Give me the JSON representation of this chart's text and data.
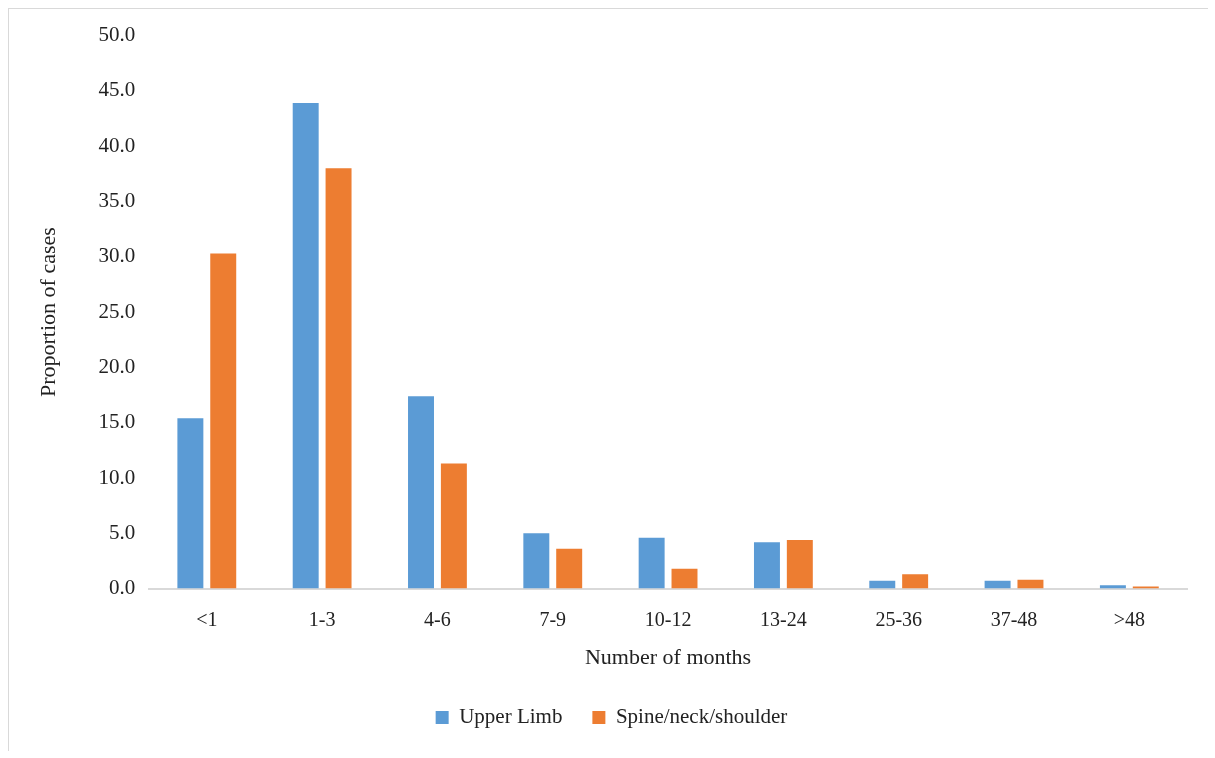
{
  "chart_data": {
    "type": "bar",
    "xlabel": "Number of months",
    "ylabel": "Proportion of cases",
    "categories": [
      "<1",
      "1-3",
      "4-6",
      "7-9",
      "10-12",
      "13-24",
      "25-36",
      "37-48",
      ">48"
    ],
    "series": [
      {
        "name": "Upper Limb",
        "color": "#5b9bd5",
        "values": [
          15.4,
          43.9,
          17.4,
          5.0,
          4.6,
          4.2,
          0.7,
          0.7,
          0.3
        ]
      },
      {
        "name": "Spine/neck/shoulder",
        "color": "#ed7d31",
        "values": [
          30.3,
          38.0,
          11.3,
          3.6,
          1.8,
          4.4,
          1.3,
          0.8,
          0.2
        ]
      }
    ],
    "ylim": [
      0,
      50
    ],
    "yticks": [
      {
        "value": 0,
        "label": "0.0"
      },
      {
        "value": 5,
        "label": "5.0"
      },
      {
        "value": 10,
        "label": "10.0"
      },
      {
        "value": 15,
        "label": "15.0"
      },
      {
        "value": 20,
        "label": "20.0"
      },
      {
        "value": 25,
        "label": "25.0"
      },
      {
        "value": 30,
        "label": "30.0"
      },
      {
        "value": 35,
        "label": "35.0"
      },
      {
        "value": 40,
        "label": "40.0"
      },
      {
        "value": 45,
        "label": "45.0"
      },
      {
        "value": 50,
        "label": "50.0"
      }
    ],
    "grid": false,
    "legend": "bottom"
  }
}
